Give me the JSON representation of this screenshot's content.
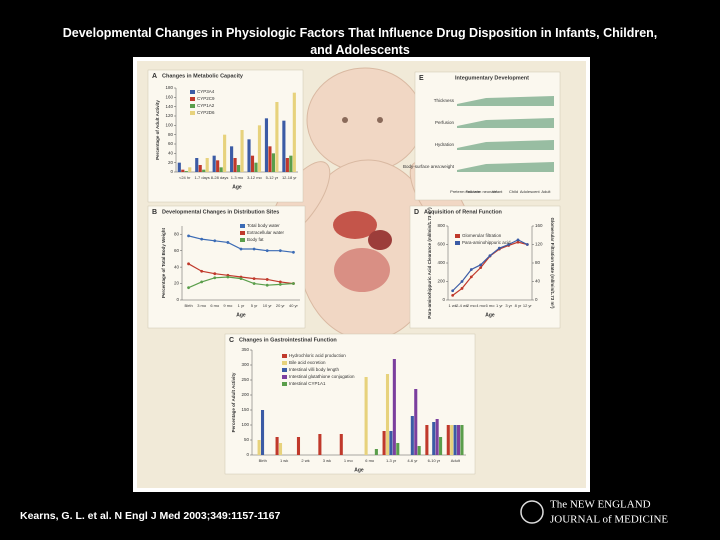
{
  "slide": {
    "title": "Developmental Changes in Physiologic Factors That Influence Drug Disposition in Infants, Children, and Adolescents",
    "citation": "Kearns, G. L. et al. N Engl J Med 2003;349:1157-1167",
    "logo_top": "The NEW ENGLAND",
    "logo_bottom": "JOURNAL of MEDICINE"
  },
  "chart_data": [
    {
      "type": "bar",
      "panel": "A",
      "title": "Changes in Metabolic Capacity",
      "ylabel": "Percentage of Adult Activity",
      "xlabel": "Age",
      "categories": [
        "<24 hr",
        "1-7 days",
        "8-28 days",
        "1-3 mo",
        "3-12 mo",
        "5-12 yr",
        "12-18 yr"
      ],
      "ylim": [
        0,
        180
      ],
      "yticks": [
        0,
        20,
        40,
        60,
        80,
        100,
        120,
        140,
        160,
        180
      ],
      "series": [
        {
          "name": "CYP3A4",
          "color": "#3b5ba5",
          "values": [
            20,
            30,
            35,
            55,
            70,
            115,
            110
          ]
        },
        {
          "name": "CYP2C9",
          "color": "#c0392b",
          "values": [
            5,
            15,
            25,
            30,
            35,
            55,
            30
          ]
        },
        {
          "name": "CYP1A2",
          "color": "#5a9e4b",
          "values": [
            2,
            5,
            10,
            15,
            20,
            40,
            35
          ]
        },
        {
          "name": "CYP2D6",
          "color": "#e7d27c",
          "values": [
            10,
            30,
            80,
            90,
            100,
            150,
            170
          ]
        }
      ]
    },
    {
      "type": "line",
      "panel": "B",
      "title": "Developmental Changes in Distribution Sites",
      "ylabel": "Percentage of Total Body Weight",
      "xlabel": "Age",
      "categories": [
        "Birth",
        "3 mo",
        "6 mo",
        "9 mo",
        "1 yr",
        "5 yr",
        "10 yr",
        "20 yr",
        "40 yr"
      ],
      "ylim": [
        0,
        90
      ],
      "yticks": [
        0,
        20,
        40,
        60,
        80
      ],
      "series": [
        {
          "name": "Total body water",
          "color": "#3b6bb5",
          "values": [
            78,
            74,
            72,
            70,
            62,
            62,
            60,
            60,
            58
          ]
        },
        {
          "name": "Extracellular water",
          "color": "#c0392b",
          "values": [
            44,
            35,
            32,
            30,
            28,
            26,
            25,
            22,
            20
          ]
        },
        {
          "name": "Body fat",
          "color": "#5a9e4b",
          "values": [
            15,
            22,
            27,
            28,
            26,
            20,
            18,
            19,
            20
          ]
        }
      ]
    },
    {
      "type": "line",
      "panel": "D",
      "title": "Acquisition of Renal Function",
      "ylabel": "Para-aminohippuric Acid Clearance (ml/min/1.73 m²)",
      "y2label": "Glomerular Filtration Rate (ml/min/1.73 m²)",
      "xlabel": "Age",
      "categories": [
        "1 wk",
        "2-4 wk",
        "2 mo",
        "4 mo",
        "6 mo",
        "1 yr",
        "3 yr",
        "8 yr",
        "12 yr"
      ],
      "ylim": [
        0,
        800
      ],
      "yticks": [
        0,
        200,
        400,
        600,
        800
      ],
      "y2lim": [
        0,
        160
      ],
      "y2ticks": [
        0,
        40,
        80,
        120,
        160
      ],
      "series": [
        {
          "name": "Glomerular filtration",
          "color": "#c0392b",
          "axis": "y2",
          "values": [
            10,
            25,
            50,
            70,
            95,
            110,
            118,
            125,
            120
          ]
        },
        {
          "name": "Para-aminohippuric acid",
          "color": "#3b5ba5",
          "values": [
            100,
            200,
            330,
            380,
            480,
            560,
            600,
            650,
            600
          ]
        }
      ]
    },
    {
      "type": "bar",
      "panel": "C",
      "title": "Changes in Gastrointestinal Function",
      "ylabel": "Percentage of Adult Activity",
      "xlabel": "Age",
      "categories": [
        "Birth",
        "1 wk",
        "2 wk",
        "3 wk",
        "1 mo",
        "6 mo",
        "1-3 yr",
        "4-6 yr",
        "6-10 yr",
        "Adult"
      ],
      "ylim": [
        0,
        350
      ],
      "yticks": [
        0,
        50,
        100,
        150,
        200,
        250,
        300,
        350
      ],
      "series": [
        {
          "name": "Hydrochloric acid production",
          "color": "#c0392b",
          "values": [
            null,
            60,
            60,
            70,
            70,
            null,
            80,
            null,
            100,
            100
          ]
        },
        {
          "name": "Bile acid excretion",
          "color": "#e7d27c",
          "values": [
            50,
            40,
            null,
            null,
            null,
            260,
            270,
            null,
            null,
            100
          ]
        },
        {
          "name": "Intestinal villi body length",
          "color": "#3b5ba5",
          "values": [
            150,
            null,
            null,
            null,
            null,
            null,
            80,
            130,
            110,
            100
          ]
        },
        {
          "name": "Intestinal glutathione conjugation",
          "color": "#7b3f9e",
          "values": [
            null,
            null,
            null,
            null,
            null,
            null,
            320,
            220,
            120,
            100
          ]
        },
        {
          "name": "Intestinal CYP1A1",
          "color": "#5a9e4b",
          "values": [
            null,
            null,
            null,
            null,
            null,
            20,
            40,
            30,
            60,
            100
          ]
        }
      ]
    }
  ],
  "diagram": {
    "panel": "E",
    "title": "Integumentary Development",
    "rows": [
      "Thickness",
      "Perfusion",
      "Hydration",
      "Body-surface area:weight"
    ],
    "columns": [
      "Preterm neonate",
      "Full-term neonate",
      "Infant",
      "Child",
      "Adolescent",
      "Adult"
    ]
  }
}
